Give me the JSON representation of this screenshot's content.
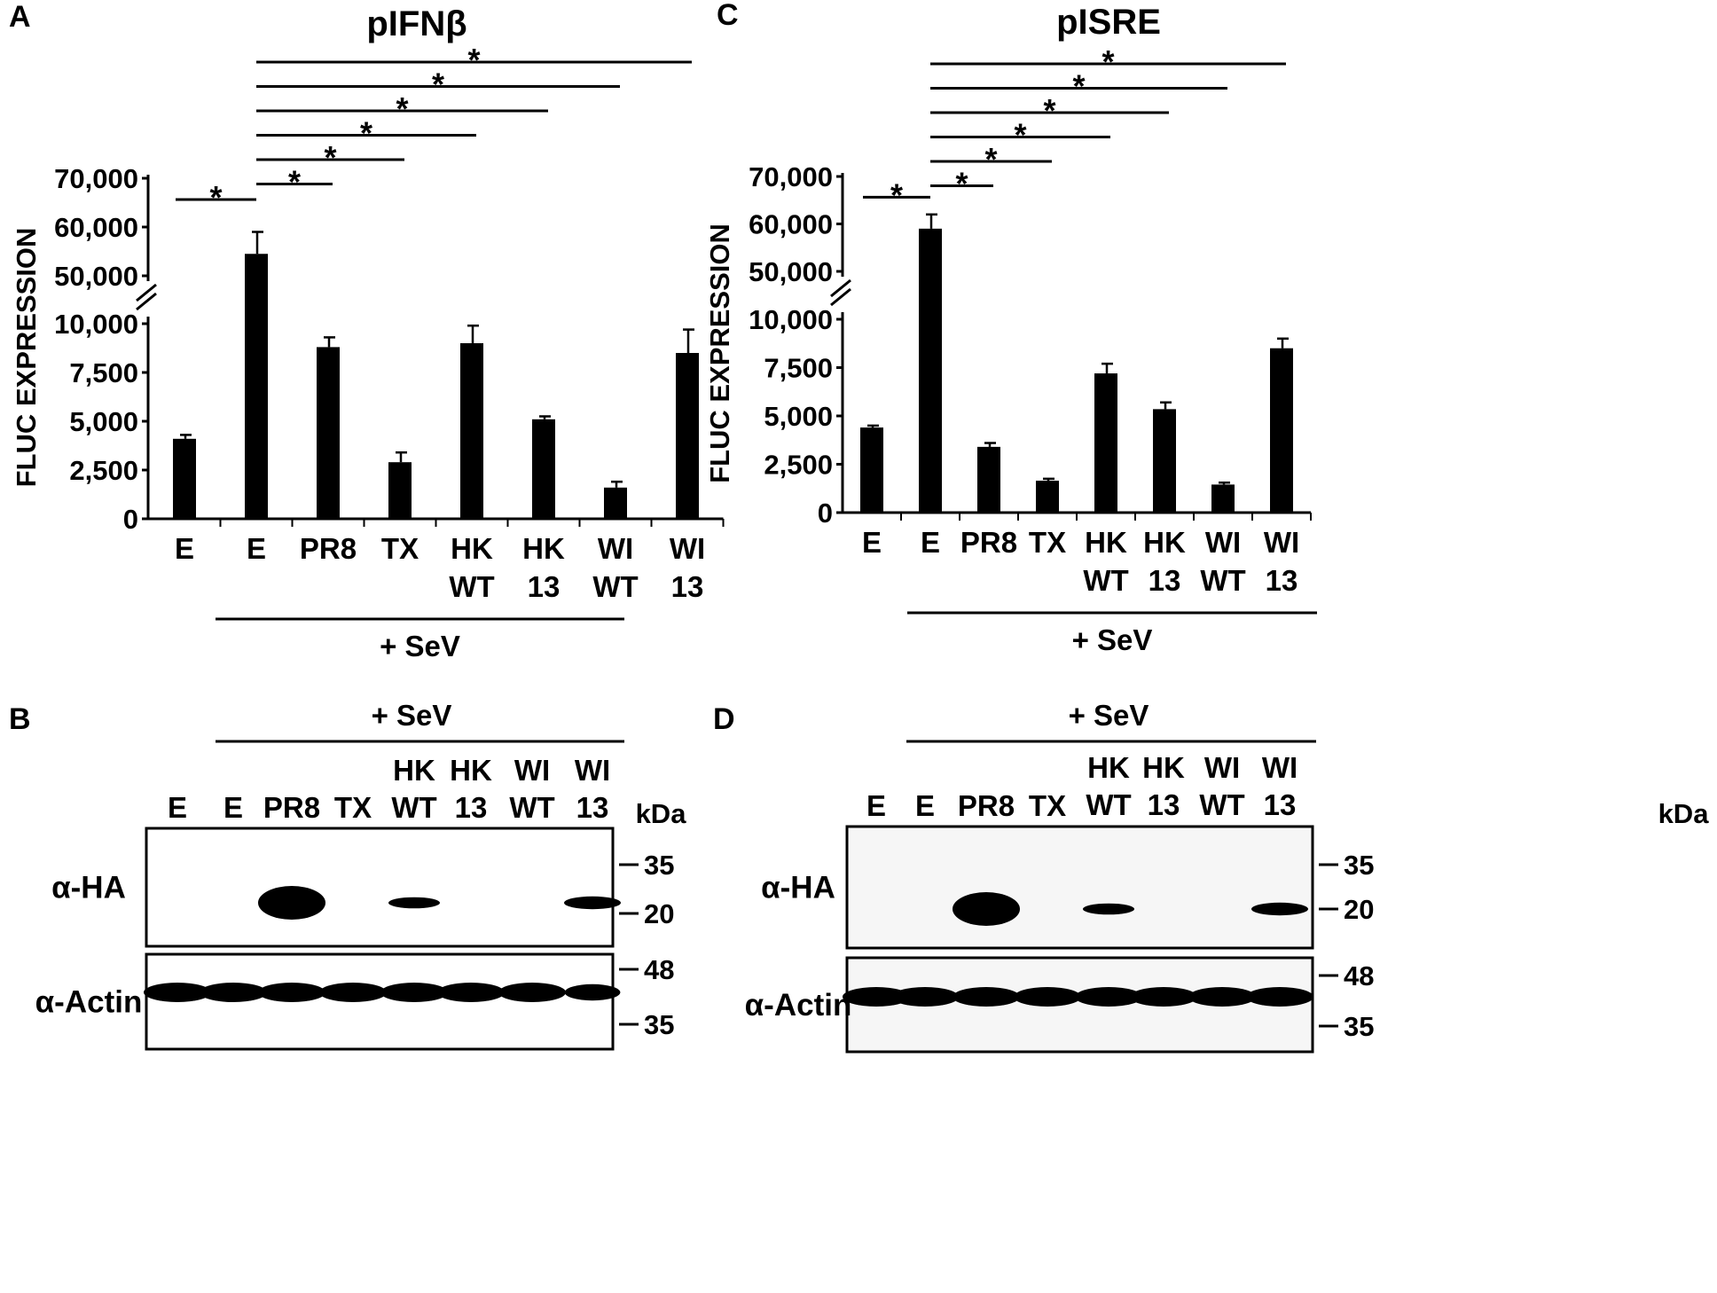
{
  "figure": {
    "letters": [
      "A",
      "B",
      "C",
      "D"
    ],
    "sev_label": "+ SeV"
  },
  "chart_data": [
    {
      "type": "bar",
      "panel": "A",
      "title": "pIFNβ",
      "ylabel": "FLUC EXPRESSION",
      "xlabel": "",
      "y_axis_broken": true,
      "lower_ylim": [
        0,
        10000
      ],
      "upper_ylim": [
        50000,
        70000
      ],
      "lower_ticks": [
        "0",
        "2,500",
        "5,000",
        "7,500",
        "10,000"
      ],
      "upper_ticks": [
        "50,000",
        "60,000",
        "70,000"
      ],
      "categories": [
        "E",
        "E",
        "PR8",
        "TX",
        "HK WT",
        "HK 13",
        "WI WT",
        "WI 13"
      ],
      "category_lines": [
        [
          "E"
        ],
        [
          "E"
        ],
        [
          "PR8"
        ],
        [
          "TX"
        ],
        [
          "HK",
          "WT"
        ],
        [
          "HK",
          "13"
        ],
        [
          "WI",
          "WT"
        ],
        [
          "WI",
          "13"
        ]
      ],
      "values": [
        4100,
        54500,
        8800,
        2900,
        9000,
        5100,
        1600,
        8500
      ],
      "errors": [
        200,
        4500,
        500,
        500,
        900,
        150,
        300,
        1200
      ],
      "significance": [
        {
          "from": 0,
          "to": 1,
          "label": "*"
        },
        {
          "from": 1,
          "to": 2,
          "label": "*"
        },
        {
          "from": 1,
          "to": 3,
          "label": "*"
        },
        {
          "from": 1,
          "to": 4,
          "label": "*"
        },
        {
          "from": 1,
          "to": 5,
          "label": "*"
        },
        {
          "from": 1,
          "to": 6,
          "label": "*"
        },
        {
          "from": 1,
          "to": 7,
          "label": "*"
        }
      ],
      "group_label": "+ SeV",
      "group_range": [
        1,
        7
      ]
    },
    {
      "type": "bar",
      "panel": "C",
      "title": "pISRE",
      "ylabel": "FLUC EXPRESSION",
      "xlabel": "",
      "y_axis_broken": true,
      "lower_ylim": [
        0,
        10000
      ],
      "upper_ylim": [
        50000,
        70000
      ],
      "lower_ticks": [
        "0",
        "2,500",
        "5,000",
        "7,500",
        "10,000"
      ],
      "upper_ticks": [
        "50,000",
        "60,000",
        "70,000"
      ],
      "categories": [
        "E",
        "E",
        "PR8",
        "TX",
        "HK WT",
        "HK 13",
        "WI WT",
        "WI 13"
      ],
      "category_lines": [
        [
          "E"
        ],
        [
          "E"
        ],
        [
          "PR8"
        ],
        [
          "TX"
        ],
        [
          "HK",
          "WT"
        ],
        [
          "HK",
          "13"
        ],
        [
          "WI",
          "WT"
        ],
        [
          "WI",
          "13"
        ]
      ],
      "values": [
        4400,
        59000,
        3400,
        1650,
        7200,
        5350,
        1450,
        8500
      ],
      "errors": [
        100,
        3000,
        200,
        100,
        500,
        350,
        100,
        500
      ],
      "significance": [
        {
          "from": 0,
          "to": 1,
          "label": "*"
        },
        {
          "from": 1,
          "to": 2,
          "label": "*"
        },
        {
          "from": 1,
          "to": 3,
          "label": "*"
        },
        {
          "from": 1,
          "to": 4,
          "label": "*"
        },
        {
          "from": 1,
          "to": 5,
          "label": "*"
        },
        {
          "from": 1,
          "to": 6,
          "label": "*"
        },
        {
          "from": 1,
          "to": 7,
          "label": "*"
        }
      ],
      "group_label": "+ SeV",
      "group_range": [
        1,
        7
      ]
    }
  ],
  "blots": [
    {
      "panel": "B",
      "sev_label": "+ SeV",
      "lane_lines": [
        [
          "E"
        ],
        [
          "E"
        ],
        [
          "PR8"
        ],
        [
          "TX"
        ],
        [
          "HK",
          "WT"
        ],
        [
          "HK",
          "13"
        ],
        [
          "WI",
          "WT"
        ],
        [
          "WI",
          "13"
        ]
      ],
      "kda_label": "kDa",
      "rows": [
        {
          "label": "α-HA",
          "markers": [
            "35",
            "20"
          ],
          "band_intensity": [
            0,
            0,
            1.0,
            0,
            0.7,
            0,
            0,
            0.8
          ]
        },
        {
          "label": "α-Actin",
          "markers": [
            "48",
            "35"
          ],
          "band_intensity": [
            1,
            1,
            1,
            1,
            1,
            1,
            1,
            0.8
          ]
        }
      ]
    },
    {
      "panel": "D",
      "sev_label": "+ SeV",
      "lane_lines": [
        [
          "E"
        ],
        [
          "E"
        ],
        [
          "PR8"
        ],
        [
          "TX"
        ],
        [
          "HK",
          "WT"
        ],
        [
          "HK",
          "13"
        ],
        [
          "WI",
          "WT"
        ],
        [
          "WI",
          "13"
        ]
      ],
      "kda_label": "kDa",
      "rows": [
        {
          "label": "α-HA",
          "markers": [
            "35",
            "20"
          ],
          "band_intensity": [
            0,
            0,
            1.0,
            0,
            0.7,
            0,
            0,
            0.8
          ]
        },
        {
          "label": "α-Actin",
          "markers": [
            "48",
            "35"
          ],
          "band_intensity": [
            1,
            1,
            1,
            1,
            1,
            1,
            1,
            1
          ]
        }
      ]
    }
  ]
}
